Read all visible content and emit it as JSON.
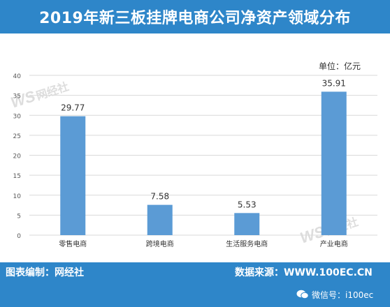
{
  "header": {
    "title": "2019年新三板挂牌电商公司净资产领域分布"
  },
  "unit": "单位：亿元",
  "watermark": {
    "logo": "WS",
    "name": "网经社"
  },
  "footer": {
    "credit": "图表编制：网经社",
    "source": "数据来源：WWW.100EC.CN",
    "wechat": "微信号：i100ec"
  },
  "colors": {
    "bar": "#5b9bd5",
    "header_bg": "#2e86c9",
    "grid": "#d9d9d9"
  },
  "chart_data": {
    "type": "bar",
    "title": "2019年新三板挂牌电商公司净资产领域分布",
    "categories": [
      "零售电商",
      "跨境电商",
      "生活服务电商",
      "产业电商"
    ],
    "values": [
      29.77,
      7.58,
      5.53,
      35.91
    ],
    "ylabel": "单位：亿元",
    "ylim": [
      0,
      40
    ],
    "yticks": [
      0,
      5,
      10,
      15,
      20,
      25,
      30,
      35,
      40
    ],
    "grid": true,
    "data_labels": true
  }
}
